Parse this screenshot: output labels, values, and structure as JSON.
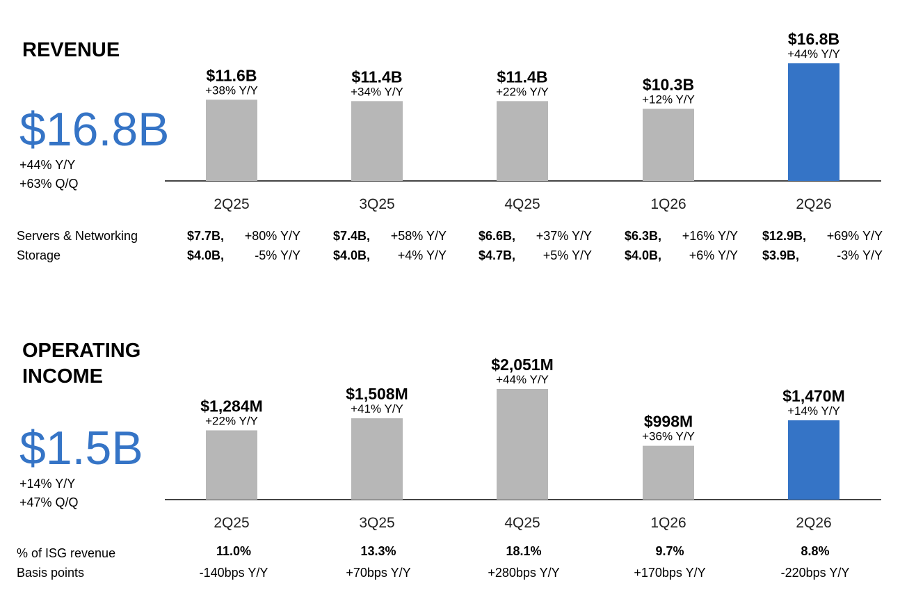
{
  "colors": {
    "highlight": "#3574c6",
    "bar": "#b7b7b7",
    "accent_text": "#3574c6"
  },
  "chart_data": [
    {
      "type": "bar",
      "title": "REVENUE",
      "unit": "$B",
      "categories": [
        "2Q25",
        "3Q25",
        "4Q25",
        "1Q26",
        "2Q26"
      ],
      "values": [
        11.6,
        11.4,
        11.4,
        10.3,
        16.8
      ],
      "value_labels": [
        "$11.6B",
        "$11.4B",
        "$11.4B",
        "$10.3B",
        "$16.8B"
      ],
      "yoy_labels": [
        "+38% Y/Y",
        "+34% Y/Y",
        "+22% Y/Y",
        "+12% Y/Y",
        "+44% Y/Y"
      ],
      "highlight_index": 4
    },
    {
      "type": "bar",
      "title": "OPERATING INCOME",
      "unit": "$M",
      "categories": [
        "2Q25",
        "3Q25",
        "4Q25",
        "1Q26",
        "2Q26"
      ],
      "values": [
        1284,
        1508,
        2051,
        998,
        1470
      ],
      "value_labels": [
        "$1,284M",
        "$1,508M",
        "$2,051M",
        "$998M",
        "$1,470M"
      ],
      "yoy_labels": [
        "+22% Y/Y",
        "+41% Y/Y",
        "+44% Y/Y",
        "+36% Y/Y",
        "+14% Y/Y"
      ],
      "highlight_index": 4
    }
  ],
  "revenue": {
    "title": "REVENUE",
    "big_value": "$16.8B",
    "yoy": "+44% Y/Y",
    "qoq": "+63% Q/Q",
    "rows": [
      {
        "label": "Servers & Networking",
        "cells": [
          {
            "value": "$7.7B,",
            "change": "+80% Y/Y"
          },
          {
            "value": "$7.4B,",
            "change": "+58% Y/Y"
          },
          {
            "value": "$6.6B,",
            "change": "+37% Y/Y"
          },
          {
            "value": "$6.3B,",
            "change": "+16% Y/Y"
          },
          {
            "value": "$12.9B,",
            "change": "+69% Y/Y"
          }
        ]
      },
      {
        "label": "Storage",
        "cells": [
          {
            "value": "$4.0B,",
            "change": "-5% Y/Y"
          },
          {
            "value": "$4.0B,",
            "change": "+4% Y/Y"
          },
          {
            "value": "$4.7B,",
            "change": "+5% Y/Y"
          },
          {
            "value": "$4.0B,",
            "change": "+6% Y/Y"
          },
          {
            "value": "$3.9B,",
            "change": "-3% Y/Y"
          }
        ]
      }
    ]
  },
  "operating_income": {
    "title_line1": "OPERATING",
    "title_line2": "INCOME",
    "big_value": "$1.5B",
    "yoy": "+14% Y/Y",
    "qoq": "+47% Q/Q",
    "pct_label": "% of ISG revenue",
    "bps_label": "Basis points",
    "pct_values": [
      "11.0%",
      "13.3%",
      "18.1%",
      "9.7%",
      "8.8%"
    ],
    "bps_values": [
      "-140bps Y/Y",
      "+70bps Y/Y",
      "+280bps Y/Y",
      "+170bps Y/Y",
      "-220bps Y/Y"
    ]
  }
}
